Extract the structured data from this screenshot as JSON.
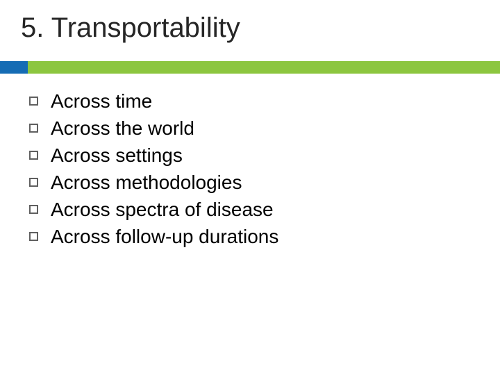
{
  "title": "5.  Transportability",
  "divider": {
    "blue_color": "#156cb4",
    "green_color": "#8cc63f",
    "height": 18,
    "blue_width": 40
  },
  "bullets": [
    "Across time",
    "Across the world",
    "Across settings",
    "Across methodologies",
    "Across spectra of disease",
    "Across follow-up durations"
  ],
  "colors": {
    "background": "#ffffff",
    "title_text": "#262626",
    "bullet_text": "#000000",
    "bullet_marker_border": "#606060"
  },
  "typography": {
    "title_fontsize": 40,
    "bullet_fontsize": 28,
    "font_family": "Arial, Helvetica, sans-serif"
  }
}
